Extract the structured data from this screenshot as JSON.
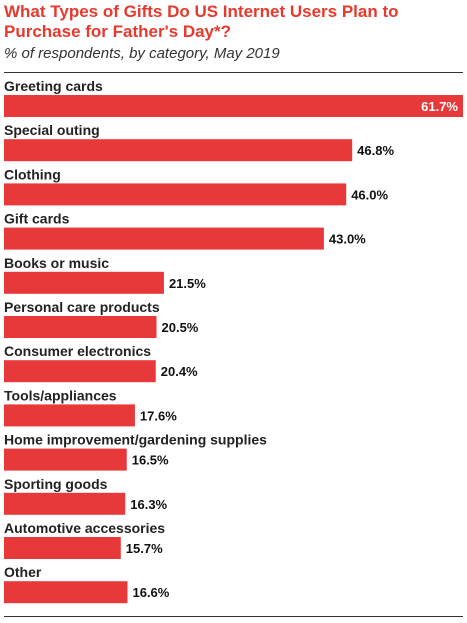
{
  "chart_data": {
    "type": "bar",
    "orientation": "horizontal",
    "title": "What Types of Gifts Do US Internet Users Plan to Purchase for Father's Day*?",
    "subtitle": "% of respondents, by category, May 2019",
    "categories": [
      "Greeting cards",
      "Special outing",
      "Clothing",
      "Gift cards",
      "Books or music",
      "Personal care products",
      "Consumer electronics",
      "Tools/appliances",
      "Home improvement/gardening supplies",
      "Sporting goods",
      "Automotive accessories",
      "Other"
    ],
    "values": [
      61.7,
      46.8,
      46.0,
      43.0,
      21.5,
      20.5,
      20.4,
      17.6,
      16.5,
      16.3,
      15.7,
      16.6
    ],
    "value_labels": [
      "61.7%",
      "46.8%",
      "46.0%",
      "43.0%",
      "21.5%",
      "20.5%",
      "20.4%",
      "17.6%",
      "16.5%",
      "16.3%",
      "15.7%",
      "16.6%"
    ],
    "xlim": [
      0,
      61.7
    ],
    "grid": false,
    "bar_color": "#e8393a",
    "title_color": "#e63a2e"
  }
}
